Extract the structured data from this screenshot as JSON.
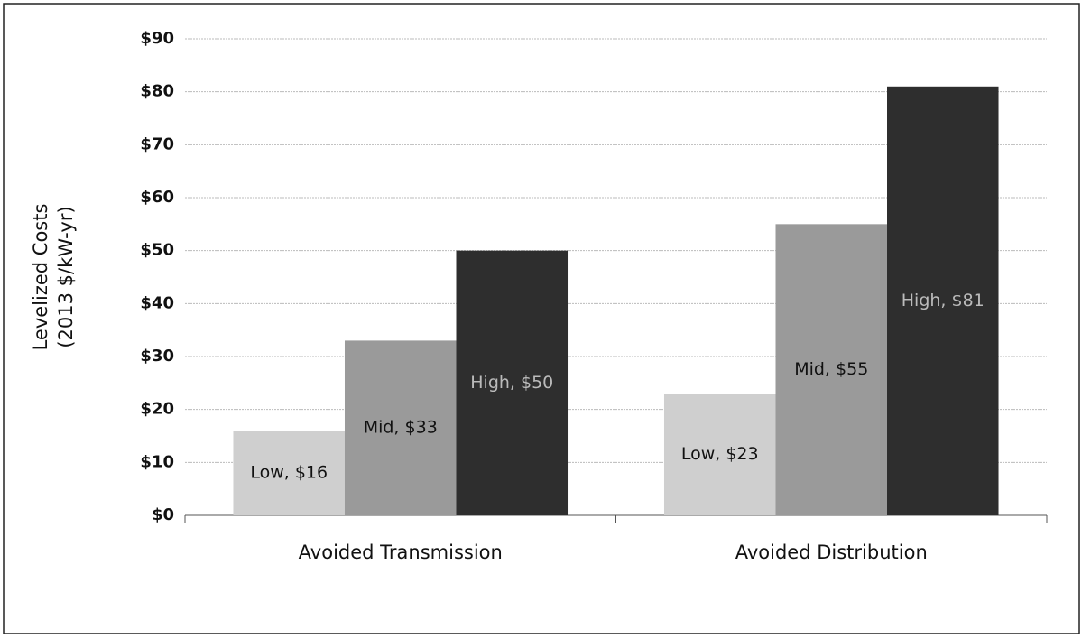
{
  "chart_data": {
    "type": "bar",
    "ylabel": [
      "Levelized Costs",
      "(2013 $/kW-yr)"
    ],
    "categories": [
      "Avoided Transmission",
      "Avoided Distribution"
    ],
    "series": [
      {
        "name": "Low",
        "color": "#cfcfcf",
        "values": [
          16,
          23
        ],
        "value_labels": [
          "Low, $16",
          "Low, $23"
        ]
      },
      {
        "name": "Mid",
        "color": "#9a9a9a",
        "values": [
          33,
          55
        ],
        "value_labels": [
          "Mid, $33",
          "Mid, $55"
        ]
      },
      {
        "name": "High",
        "color": "#2e2e2e",
        "values": [
          50,
          81
        ],
        "value_labels": [
          "High, $50",
          "High, $81"
        ]
      }
    ],
    "ylim": [
      0,
      90
    ],
    "yticks": [
      {
        "value": 0,
        "label": "$0"
      },
      {
        "value": 10,
        "label": "$10"
      },
      {
        "value": 20,
        "label": "$20"
      },
      {
        "value": 30,
        "label": "$30"
      },
      {
        "value": 40,
        "label": "$40"
      },
      {
        "value": 50,
        "label": "$50"
      },
      {
        "value": 60,
        "label": "$60"
      },
      {
        "value": 70,
        "label": "$70"
      },
      {
        "value": 80,
        "label": "$80"
      },
      {
        "value": 90,
        "label": "$90"
      }
    ],
    "grid": true
  }
}
